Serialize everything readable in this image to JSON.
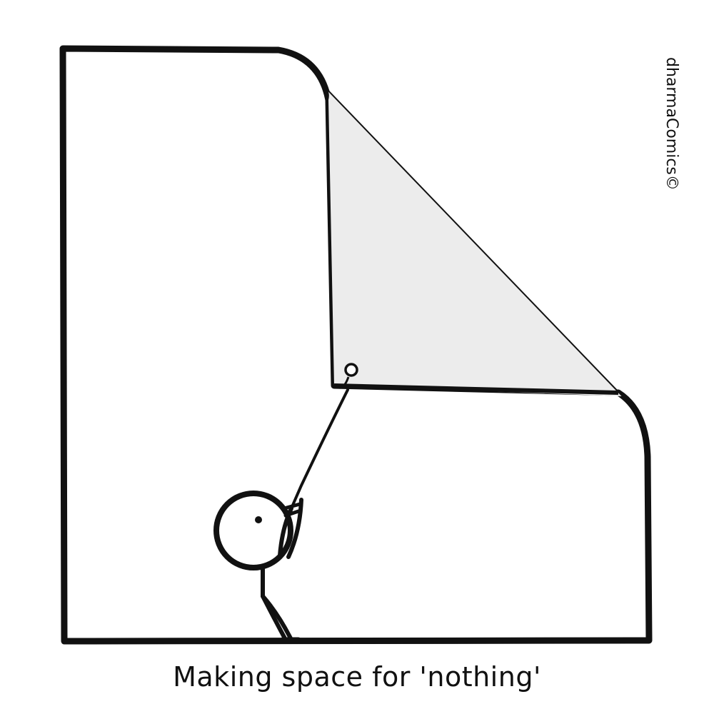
{
  "caption": "Making space for 'nothing'",
  "signature": "dharmaComics©",
  "colors": {
    "ink": "#111111",
    "paper": "#ffffff",
    "fold_fill": "#ececec"
  }
}
